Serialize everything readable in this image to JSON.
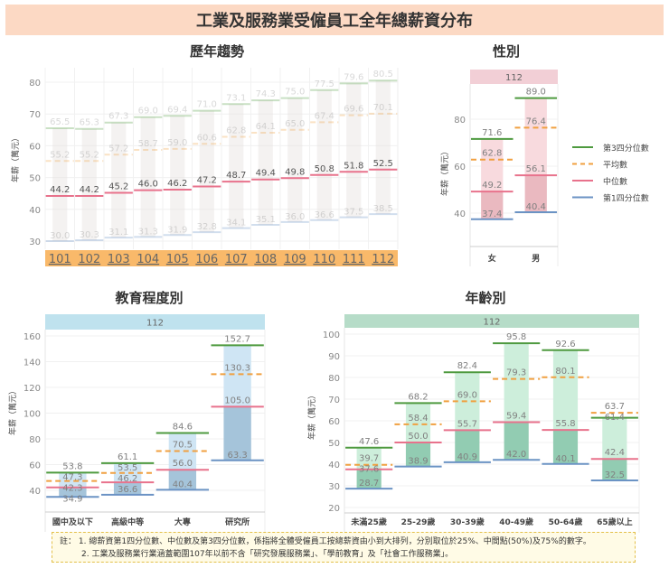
{
  "header": {
    "title": "工業及服務業受僱員工全年總薪資分布"
  },
  "colors": {
    "q3": "#4e9a3f",
    "mean": "#f0a040",
    "median": "#e8728c",
    "q1": "#6b93c4",
    "history_band": "#f9b96a",
    "gender_strip": "#f2cfd6",
    "education_strip": "#bfe2ee",
    "age_strip": "#b6dcc8"
  },
  "legend": {
    "items": [
      "第3四分位數",
      "平均數",
      "中位數",
      "第1四分位數"
    ]
  },
  "chart_data": [
    {
      "type": "bar",
      "title": "歷年趨勢",
      "ylabel": "年薪（萬元）",
      "ylim": [
        28,
        82
      ],
      "yticks": [
        "30",
        "40",
        "50",
        "60",
        "70",
        "80"
      ],
      "grid": true,
      "categories": [
        "101",
        "102",
        "103",
        "104",
        "105",
        "106",
        "107",
        "108",
        "109",
        "110",
        "111",
        "112"
      ],
      "series": [
        {
          "name": "第3四分位數",
          "values": [
            65.5,
            65.3,
            67.3,
            69.0,
            69.4,
            71.0,
            73.1,
            74.3,
            75.0,
            77.5,
            79.6,
            80.5
          ]
        },
        {
          "name": "平均數",
          "values": [
            55.2,
            55.2,
            57.2,
            58.7,
            59.0,
            60.6,
            62.8,
            64.1,
            65.0,
            67.4,
            69.6,
            70.1
          ]
        },
        {
          "name": "中位數",
          "values": [
            44.2,
            44.2,
            45.2,
            46.0,
            46.2,
            47.2,
            48.7,
            49.4,
            49.8,
            50.8,
            51.8,
            52.5
          ]
        },
        {
          "name": "第1四分位數",
          "values": [
            30.0,
            30.3,
            31.1,
            31.3,
            31.9,
            32.8,
            34.1,
            35.1,
            36.0,
            36.6,
            37.5,
            38.5
          ]
        }
      ]
    },
    {
      "type": "bar",
      "title": "性別",
      "facet": "112",
      "ylabel": "年薪（萬元）",
      "ylim": [
        26,
        95
      ],
      "yticks": [
        "40",
        "60",
        "80"
      ],
      "grid": true,
      "categories": [
        "女",
        "男"
      ],
      "series": [
        {
          "name": "第3四分位數",
          "values": [
            71.6,
            89.0
          ]
        },
        {
          "name": "平均數",
          "values": [
            62.8,
            76.4
          ]
        },
        {
          "name": "中位數",
          "values": [
            49.2,
            56.1
          ]
        },
        {
          "name": "第1四分位數",
          "values": [
            37.4,
            40.4
          ]
        }
      ],
      "legend": "right"
    },
    {
      "type": "bar",
      "title": "教育程度別",
      "facet": "112",
      "ylabel": "年薪（萬元）",
      "ylim": [
        25,
        165
      ],
      "yticks": [
        "40",
        "60",
        "80",
        "100",
        "120",
        "140",
        "160"
      ],
      "grid": true,
      "categories": [
        "國中及以下",
        "高級中等",
        "大專",
        "研究所"
      ],
      "series": [
        {
          "name": "第3四分位數",
          "values": [
            53.8,
            61.1,
            84.6,
            152.7
          ]
        },
        {
          "name": "平均數",
          "values": [
            47.3,
            53.5,
            70.5,
            130.3
          ]
        },
        {
          "name": "中位數",
          "values": [
            42.3,
            46.2,
            56.0,
            105.0
          ]
        },
        {
          "name": "第1四分位數",
          "values": [
            34.9,
            36.6,
            40.4,
            63.3
          ]
        }
      ]
    },
    {
      "type": "bar",
      "title": "年齡別",
      "facet": "112",
      "ylabel": "年薪（萬元）",
      "ylim": [
        17,
        102
      ],
      "yticks": [
        "20",
        "30",
        "40",
        "50",
        "60",
        "70",
        "80",
        "90",
        "100"
      ],
      "grid": true,
      "categories": [
        "未滿25歲",
        "25-29歲",
        "30-39歲",
        "40-49歲",
        "50-64歲",
        "65歲以上"
      ],
      "series": [
        {
          "name": "第3四分位數",
          "values": [
            47.6,
            68.2,
            82.4,
            95.8,
            92.6,
            61.4
          ]
        },
        {
          "name": "平均數",
          "values": [
            39.7,
            58.4,
            69.0,
            79.3,
            80.1,
            63.7
          ]
        },
        {
          "name": "中位數",
          "values": [
            37.6,
            50.0,
            55.7,
            59.4,
            55.8,
            42.4
          ]
        },
        {
          "name": "第1四分位數",
          "values": [
            28.7,
            38.9,
            40.9,
            42.0,
            40.1,
            32.5
          ]
        }
      ]
    }
  ],
  "note": {
    "label": "註：",
    "lines": [
      "1. 總薪資第1四分位數、中位數及第3四分位數，係指將全體受僱員工按總薪資由小到大排列，分別取位於25%、中間點(50%)及75%的數字。",
      "2. 工業及服務業行業涵蓋範圍107年以前不含「研究發展服務業」、「學前教育」及「社會工作服務業」。"
    ]
  }
}
